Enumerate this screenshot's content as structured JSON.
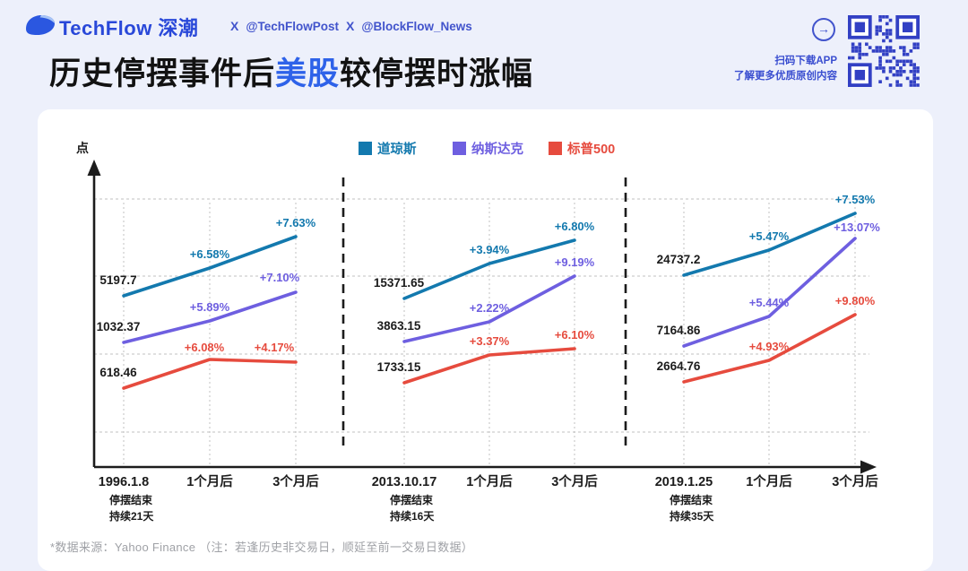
{
  "header": {
    "brand": "TechFlow 深潮",
    "handles": [
      "@TechFlowPost",
      "@BlockFlow_News"
    ],
    "qr_caption_line1": "扫码下载APP",
    "qr_caption_line2": "了解更多优质原创内容",
    "title_prefix": "历史停摆事件后",
    "title_highlight": "美股",
    "title_suffix": "较停摆时涨幅"
  },
  "colors": {
    "page_background": "#edf0fb",
    "brand_blue": "#2948d9",
    "handle_blue": "#4254cc",
    "title_highlight": "#2e62e9",
    "qr_blue": "#3240c4",
    "dow_teal": "#1379ae",
    "nasdaq_purple": "#6e5fe0",
    "sp500_red": "#e64b3e"
  },
  "chart_data": {
    "type": "line",
    "title": "历史停摆事件后美股较停摆时涨幅",
    "y_axis_label": "点",
    "grid": true,
    "legend_position": "top",
    "legend": [
      {
        "name": "道琼斯",
        "color": "#1379ae"
      },
      {
        "name": "纳斯达克",
        "color": "#6e5fe0"
      },
      {
        "name": "标普500",
        "color": "#e64b3e"
      }
    ],
    "groups": [
      {
        "event_date": "1996.1.8",
        "x_labels": [
          "1996.1.8",
          "1个月后",
          "3个月后"
        ],
        "notes": [
          "停摆结束",
          "持续21天"
        ],
        "series": [
          {
            "name": "道琼斯",
            "start_value": 5197.7,
            "start_label": "5197.7",
            "pct_changes": [
              6.58,
              7.63
            ],
            "pct_labels": [
              "+6.58%",
              "+7.63%"
            ]
          },
          {
            "name": "纳斯达克",
            "start_value": 1032.37,
            "start_label": "1032.37",
            "pct_changes": [
              5.89,
              7.1
            ],
            "pct_labels": [
              "+5.89%",
              "+7.10%"
            ]
          },
          {
            "name": "标普500",
            "start_value": 618.46,
            "start_label": "618.46",
            "pct_changes": [
              6.08,
              4.17
            ],
            "pct_labels": [
              "+6.08%",
              "+4.17%"
            ]
          }
        ]
      },
      {
        "event_date": "2013.10.17",
        "x_labels": [
          "2013.10.17",
          "1个月后",
          "3个月后"
        ],
        "notes": [
          "停摆结束",
          "持续16天"
        ],
        "series": [
          {
            "name": "道琼斯",
            "start_value": 15371.65,
            "start_label": "15371.65",
            "pct_changes": [
              3.94,
              6.8
            ],
            "pct_labels": [
              "+3.94%",
              "+6.80%"
            ]
          },
          {
            "name": "纳斯达克",
            "start_value": 3863.15,
            "start_label": "3863.15",
            "pct_changes": [
              2.22,
              9.19
            ],
            "pct_labels": [
              "+2.22%",
              "+9.19%"
            ]
          },
          {
            "name": "标普500",
            "start_value": 1733.15,
            "start_label": "1733.15",
            "pct_changes": [
              3.37,
              6.1
            ],
            "pct_labels": [
              "+3.37%",
              "+6.10%"
            ]
          }
        ]
      },
      {
        "event_date": "2019.1.25",
        "x_labels": [
          "2019.1.25",
          "1个月后",
          "3个月后"
        ],
        "notes": [
          "停摆结束",
          "持续35天"
        ],
        "series": [
          {
            "name": "道琼斯",
            "start_value": 24737.2,
            "start_label": "24737.2",
            "pct_changes": [
              5.47,
              7.53
            ],
            "pct_labels": [
              "+5.47%",
              "+7.53%"
            ]
          },
          {
            "name": "纳斯达克",
            "start_value": 7164.86,
            "start_label": "7164.86",
            "pct_changes": [
              5.44,
              13.07
            ],
            "pct_labels": [
              "+5.44%",
              "+13.07%"
            ]
          },
          {
            "name": "标普500",
            "start_value": 2664.76,
            "start_label": "2664.76",
            "pct_changes": [
              4.93,
              9.8
            ],
            "pct_labels": [
              "+4.93%",
              "+9.80%"
            ]
          }
        ]
      }
    ],
    "footnote": "*数据来源：Yahoo Finance （注：若逢历史非交易日，顺延至前一交易日数据）"
  }
}
